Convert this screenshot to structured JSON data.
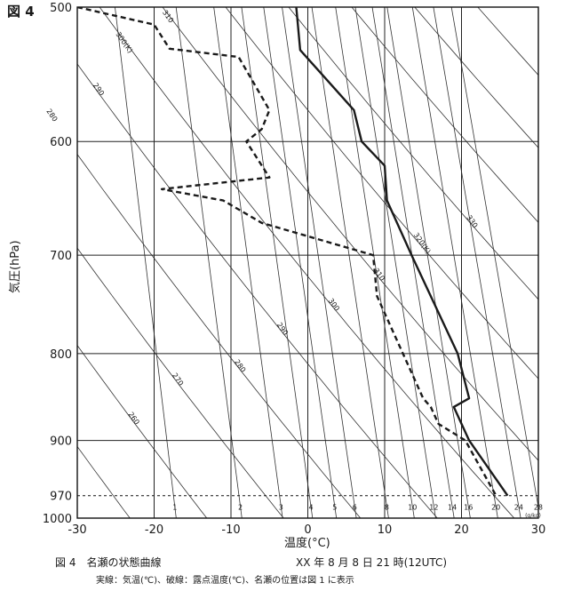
{
  "figure_label": "図 4",
  "caption": {
    "title": "図 4　名瀬の状態曲線",
    "datetime": "XX 年 8 月 8 日 21 時(12UTC)",
    "note": "実線：気温(℃)、破線：露点温度(℃)、名瀬の位置は図 1 に表示"
  },
  "chart_data": {
    "type": "line",
    "title": "",
    "xlabel": "温度(°C)",
    "ylabel": "気圧(hPa)",
    "xlim": [
      -30,
      30
    ],
    "ylim": [
      1000,
      500
    ],
    "y_scale": "log",
    "x_ticks": [
      -30,
      -20,
      -10,
      0,
      10,
      20,
      30
    ],
    "y_ticks": [
      500,
      600,
      700,
      800,
      900,
      970,
      1000
    ],
    "grid": true,
    "series": [
      {
        "name": "実線：気温(℃)",
        "style": "solid",
        "color": "#1a1a1a",
        "points": [
          {
            "p": 500,
            "t": -1.5
          },
          {
            "p": 530,
            "t": -1.0
          },
          {
            "p": 575,
            "t": 6.0
          },
          {
            "p": 600,
            "t": 7.0
          },
          {
            "p": 620,
            "t": 10.0
          },
          {
            "p": 650,
            "t": 10.3
          },
          {
            "p": 700,
            "t": 13.5
          },
          {
            "p": 800,
            "t": 19.5
          },
          {
            "p": 850,
            "t": 21.0
          },
          {
            "p": 860,
            "t": 19.0
          },
          {
            "p": 900,
            "t": 21.0
          },
          {
            "p": 970,
            "t": 26.0
          }
        ]
      },
      {
        "name": "破線：露点温度(℃)",
        "style": "dashed",
        "color": "#1a1a1a",
        "points": [
          {
            "p": 500,
            "t": -30.0
          },
          {
            "p": 512,
            "t": -20.0
          },
          {
            "p": 529,
            "t": -18.0
          },
          {
            "p": 535,
            "t": -9.0
          },
          {
            "p": 575,
            "t": -5.0
          },
          {
            "p": 590,
            "t": -6.0
          },
          {
            "p": 600,
            "t": -8.0
          },
          {
            "p": 630,
            "t": -5.0
          },
          {
            "p": 640,
            "t": -19.0
          },
          {
            "p": 650,
            "t": -11.0
          },
          {
            "p": 670,
            "t": -6.0
          },
          {
            "p": 700,
            "t": 8.5
          },
          {
            "p": 740,
            "t": 9.0
          },
          {
            "p": 850,
            "t": 15.0
          },
          {
            "p": 860,
            "t": 16.0
          },
          {
            "p": 880,
            "t": 17.0
          },
          {
            "p": 900,
            "t": 20.5
          },
          {
            "p": 970,
            "t": 24.5
          }
        ]
      }
    ],
    "reference_line": {
      "p": 970,
      "style": "dashed"
    },
    "mixing_ratio_labels": [
      "1",
      "2",
      "3",
      "4",
      "5",
      "6",
      "8",
      "10",
      "12",
      "14",
      "16",
      "20",
      "24",
      "28"
    ],
    "mixing_ratio_unit": "(g/kg)",
    "adiabat_labels": [
      "260",
      "270",
      "280",
      "290",
      "300",
      "310",
      "320(K)",
      "330"
    ],
    "adiabat_top_labels": [
      "300(K)",
      "310"
    ]
  }
}
